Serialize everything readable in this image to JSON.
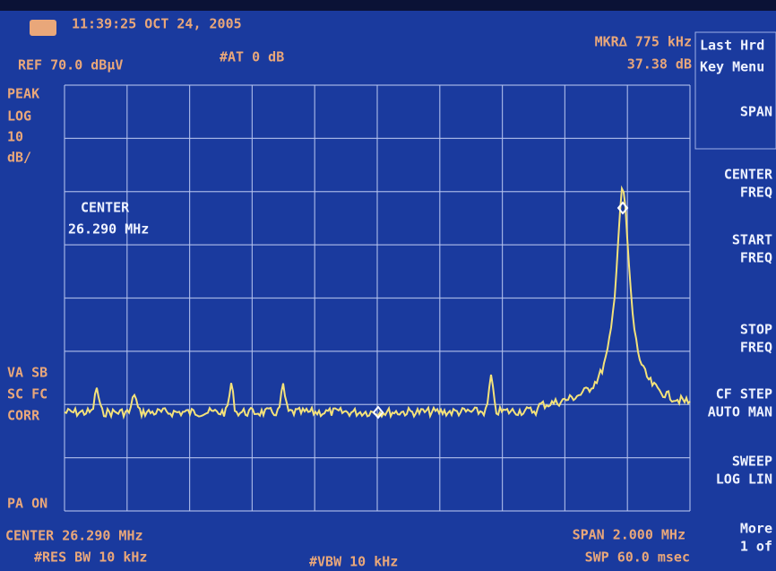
{
  "header": {
    "timestamp": "11:39:25 OCT 24, 2005",
    "ref_level": "REF 70.0 dBμV",
    "attenuation": "#AT 0 dB",
    "marker_delta": "MKR∆ 775 kHz",
    "marker_level": "37.38 dB"
  },
  "left_annotations": {
    "top": [
      "PEAK",
      "LOG",
      "10",
      "dB/"
    ],
    "middle": [
      "VA SB",
      "SC FC",
      "CORR"
    ],
    "bottom": [
      "PA ON"
    ]
  },
  "center_label": {
    "title": "CENTER",
    "value": "26.290 MHz"
  },
  "footer": {
    "center": "CENTER 26.290 MHz",
    "res_bw": "#RES BW 10 kHz",
    "vbw": "#VBW 10 kHz",
    "span": "SPAN 2.000 MHz",
    "sweep": "SWP 60.0 msec"
  },
  "softkeys": {
    "menu_title": [
      "Last Hrd",
      "Key Menu"
    ],
    "keys": [
      [
        "SPAN"
      ],
      [
        "CENTER",
        "FREQ"
      ],
      [
        "START",
        "FREQ"
      ],
      [
        "STOP",
        "FREQ"
      ],
      [
        "CF STEP",
        "AUTO MAN"
      ],
      [
        "SWEEP",
        "LOG LIN"
      ],
      [
        "More",
        "1 of"
      ]
    ]
  }
}
